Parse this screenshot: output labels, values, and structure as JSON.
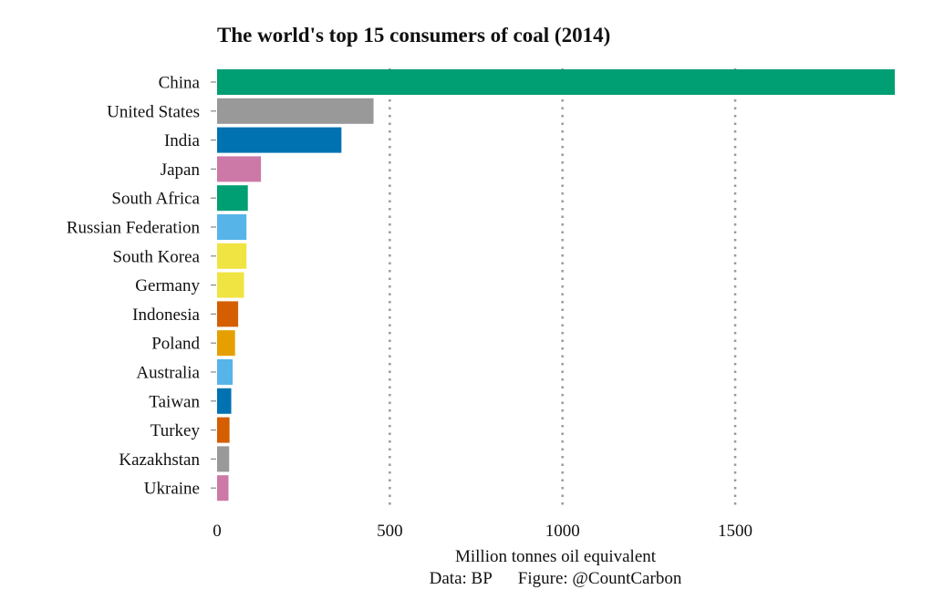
{
  "chart_data": {
    "type": "bar",
    "orientation": "horizontal",
    "title": "The world's top 15 consumers of coal (2014)",
    "xlabel": "Million tonnes oil equivalent",
    "ylabel": "",
    "xlim": [
      0,
      1962
    ],
    "xticks": [
      0,
      500,
      1000,
      1500
    ],
    "xtick_labels": [
      "0",
      "500",
      "1000",
      "1500"
    ],
    "grid": "vertical dotted",
    "categories": [
      "China",
      "United States",
      "India",
      "Japan",
      "South Africa",
      "Russian Federation",
      "South Korea",
      "Germany",
      "Indonesia",
      "Poland",
      "Australia",
      "Taiwan",
      "Turkey",
      "Kazakhstan",
      "Ukraine"
    ],
    "values": [
      1962,
      453,
      360,
      127,
      89,
      85,
      85,
      78,
      61,
      52,
      45,
      41,
      36,
      35,
      33
    ],
    "colors": [
      "#009E73",
      "#999999",
      "#0072B2",
      "#CC79A7",
      "#009E73",
      "#56B4E9",
      "#F0E442",
      "#F0E442",
      "#D55E00",
      "#E69F00",
      "#56B4E9",
      "#0072B2",
      "#D55E00",
      "#999999",
      "#CC79A7"
    ],
    "source": "Data: BP",
    "credit": "Figure: @CountCarbon"
  }
}
